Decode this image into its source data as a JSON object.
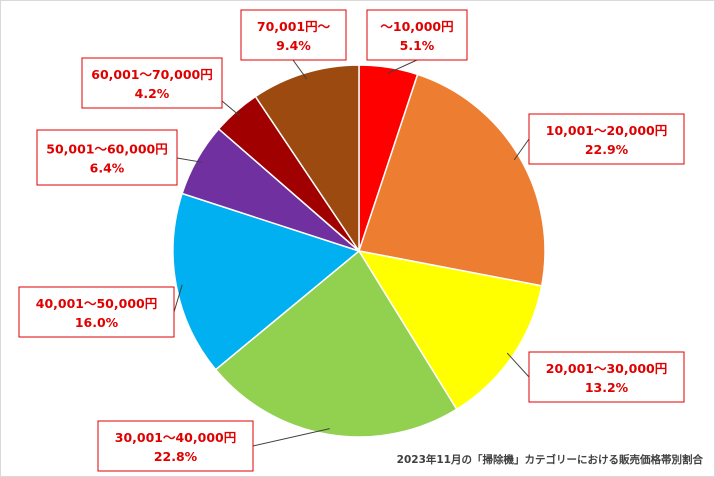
{
  "chart_data": {
    "type": "pie",
    "title": "",
    "caption": "2023年11月の「掃除機」カテゴリーにおける販売価格帯別割合",
    "slices": [
      {
        "label": "～10,000円",
        "value": 5.1,
        "value_label": "5.1%",
        "color": "#ff0000"
      },
      {
        "label": "10,001～20,000円",
        "value": 22.9,
        "value_label": "22.9%",
        "color": "#ed7d31"
      },
      {
        "label": "20,001～30,000円",
        "value": 13.2,
        "value_label": "13.2%",
        "color": "#ffff00"
      },
      {
        "label": "30,001～40,000円",
        "value": 22.8,
        "value_label": "22.8%",
        "color": "#92d050"
      },
      {
        "label": "40,001～50,000円",
        "value": 16.0,
        "value_label": "16.0%",
        "color": "#00b0f0"
      },
      {
        "label": "50,001～60,000円",
        "value": 6.4,
        "value_label": "6.4%",
        "color": "#7030a0"
      },
      {
        "label": "60,001～70,000円",
        "value": 4.2,
        "value_label": "4.2%",
        "color": "#a00000"
      },
      {
        "label": "70,001円～",
        "value": 9.4,
        "value_label": "9.4%",
        "color": "#9c4a10"
      }
    ]
  }
}
